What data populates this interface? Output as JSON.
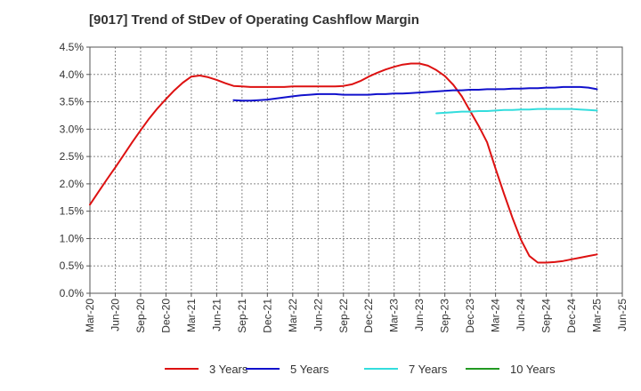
{
  "chart_data": {
    "type": "line",
    "title": "[9017]  Trend of StDev of Operating Cashflow Margin",
    "xlabel": "",
    "ylabel": "",
    "x_ticks": [
      "Mar-20",
      "Jun-20",
      "Sep-20",
      "Dec-20",
      "Mar-21",
      "Jun-21",
      "Sep-21",
      "Dec-21",
      "Mar-22",
      "Jun-22",
      "Sep-22",
      "Dec-22",
      "Mar-23",
      "Jun-23",
      "Sep-23",
      "Dec-23",
      "Mar-24",
      "Jun-24",
      "Sep-24",
      "Dec-24",
      "Mar-25",
      "Jun-25"
    ],
    "y_ticks": [
      "0.0%",
      "0.5%",
      "1.0%",
      "1.5%",
      "2.0%",
      "2.5%",
      "3.0%",
      "3.5%",
      "4.0%",
      "4.5%"
    ],
    "ylim": [
      0,
      4.5
    ],
    "y_unit": "%",
    "grid": true,
    "legend_position": "bottom",
    "series": [
      {
        "name": "3 Years",
        "color": "#dd1111",
        "points": [
          [
            "Mar-20",
            1.62
          ],
          [
            "Apr-20",
            1.85
          ],
          [
            "May-20",
            2.08
          ],
          [
            "Jun-20",
            2.3
          ],
          [
            "Jul-20",
            2.53
          ],
          [
            "Aug-20",
            2.76
          ],
          [
            "Sep-20",
            2.98
          ],
          [
            "Oct-20",
            3.19
          ],
          [
            "Nov-20",
            3.38
          ],
          [
            "Dec-20",
            3.55
          ],
          [
            "Jan-21",
            3.71
          ],
          [
            "Feb-21",
            3.85
          ],
          [
            "Mar-21",
            3.96
          ],
          [
            "Apr-21",
            3.98
          ],
          [
            "May-21",
            3.95
          ],
          [
            "Jun-21",
            3.9
          ],
          [
            "Jul-21",
            3.84
          ],
          [
            "Aug-21",
            3.79
          ],
          [
            "Sep-21",
            3.78
          ],
          [
            "Oct-21",
            3.77
          ],
          [
            "Nov-21",
            3.77
          ],
          [
            "Dec-21",
            3.77
          ],
          [
            "Jan-22",
            3.77
          ],
          [
            "Feb-22",
            3.77
          ],
          [
            "Mar-22",
            3.78
          ],
          [
            "Apr-22",
            3.78
          ],
          [
            "May-22",
            3.78
          ],
          [
            "Jun-22",
            3.78
          ],
          [
            "Jul-22",
            3.78
          ],
          [
            "Aug-22",
            3.78
          ],
          [
            "Sep-22",
            3.79
          ],
          [
            "Oct-22",
            3.82
          ],
          [
            "Nov-22",
            3.88
          ],
          [
            "Dec-22",
            3.96
          ],
          [
            "Jan-23",
            4.03
          ],
          [
            "Feb-23",
            4.09
          ],
          [
            "Mar-23",
            4.14
          ],
          [
            "Apr-23",
            4.18
          ],
          [
            "May-23",
            4.2
          ],
          [
            "Jun-23",
            4.2
          ],
          [
            "Jul-23",
            4.16
          ],
          [
            "Aug-23",
            4.08
          ],
          [
            "Sep-23",
            3.97
          ],
          [
            "Oct-23",
            3.81
          ],
          [
            "Nov-23",
            3.6
          ],
          [
            "Dec-23",
            3.33
          ],
          [
            "Jan-24",
            3.06
          ],
          [
            "Feb-24",
            2.76
          ],
          [
            "Mar-24",
            2.28
          ],
          [
            "Apr-24",
            1.82
          ],
          [
            "May-24",
            1.38
          ],
          [
            "Jun-24",
            0.98
          ],
          [
            "Jul-24",
            0.68
          ],
          [
            "Aug-24",
            0.56
          ],
          [
            "Sep-24",
            0.56
          ],
          [
            "Oct-24",
            0.57
          ],
          [
            "Nov-24",
            0.59
          ],
          [
            "Dec-24",
            0.62
          ],
          [
            "Jan-25",
            0.65
          ],
          [
            "Feb-25",
            0.68
          ],
          [
            "Mar-25",
            0.71
          ]
        ]
      },
      {
        "name": "5 Years",
        "color": "#1111cc",
        "points": [
          [
            "Aug-21",
            3.53
          ],
          [
            "Sep-21",
            3.52
          ],
          [
            "Oct-21",
            3.52
          ],
          [
            "Nov-21",
            3.53
          ],
          [
            "Dec-21",
            3.54
          ],
          [
            "Jan-22",
            3.56
          ],
          [
            "Feb-22",
            3.58
          ],
          [
            "Mar-22",
            3.6
          ],
          [
            "Apr-22",
            3.62
          ],
          [
            "May-22",
            3.63
          ],
          [
            "Jun-22",
            3.64
          ],
          [
            "Jul-22",
            3.64
          ],
          [
            "Aug-22",
            3.64
          ],
          [
            "Sep-22",
            3.63
          ],
          [
            "Oct-22",
            3.63
          ],
          [
            "Nov-22",
            3.63
          ],
          [
            "Dec-22",
            3.63
          ],
          [
            "Jan-23",
            3.64
          ],
          [
            "Feb-23",
            3.64
          ],
          [
            "Mar-23",
            3.65
          ],
          [
            "Apr-23",
            3.65
          ],
          [
            "May-23",
            3.66
          ],
          [
            "Jun-23",
            3.67
          ],
          [
            "Jul-23",
            3.68
          ],
          [
            "Aug-23",
            3.69
          ],
          [
            "Sep-23",
            3.7
          ],
          [
            "Oct-23",
            3.71
          ],
          [
            "Nov-23",
            3.71
          ],
          [
            "Dec-23",
            3.72
          ],
          [
            "Jan-24",
            3.72
          ],
          [
            "Feb-24",
            3.73
          ],
          [
            "Mar-24",
            3.73
          ],
          [
            "Apr-24",
            3.73
          ],
          [
            "May-24",
            3.74
          ],
          [
            "Jun-24",
            3.74
          ],
          [
            "Jul-24",
            3.75
          ],
          [
            "Aug-24",
            3.75
          ],
          [
            "Sep-24",
            3.76
          ],
          [
            "Oct-24",
            3.76
          ],
          [
            "Nov-24",
            3.77
          ],
          [
            "Dec-24",
            3.77
          ],
          [
            "Jan-25",
            3.77
          ],
          [
            "Feb-25",
            3.76
          ],
          [
            "Mar-25",
            3.73
          ]
        ]
      },
      {
        "name": "7 Years",
        "color": "#33dddd",
        "points": [
          [
            "Aug-23",
            3.29
          ],
          [
            "Sep-23",
            3.3
          ],
          [
            "Oct-23",
            3.31
          ],
          [
            "Nov-23",
            3.32
          ],
          [
            "Dec-23",
            3.32
          ],
          [
            "Jan-24",
            3.33
          ],
          [
            "Feb-24",
            3.33
          ],
          [
            "Mar-24",
            3.34
          ],
          [
            "Apr-24",
            3.35
          ],
          [
            "May-24",
            3.35
          ],
          [
            "Jun-24",
            3.36
          ],
          [
            "Jul-24",
            3.36
          ],
          [
            "Aug-24",
            3.37
          ],
          [
            "Sep-24",
            3.37
          ],
          [
            "Oct-24",
            3.37
          ],
          [
            "Nov-24",
            3.37
          ],
          [
            "Dec-24",
            3.37
          ],
          [
            "Jan-25",
            3.36
          ],
          [
            "Feb-25",
            3.35
          ],
          [
            "Mar-25",
            3.34
          ]
        ]
      },
      {
        "name": "10 Years",
        "color": "#229922",
        "points": []
      }
    ]
  }
}
